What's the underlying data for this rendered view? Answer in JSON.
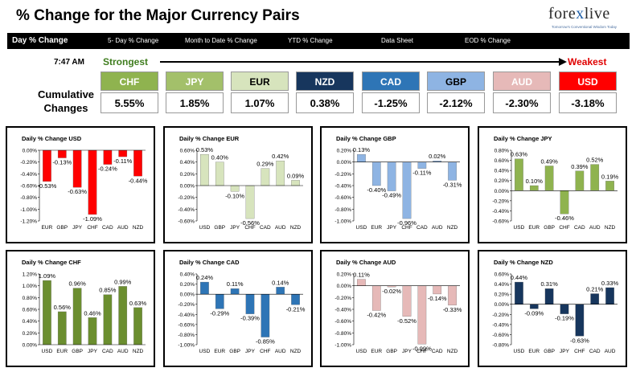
{
  "header": {
    "title": "% Change for the Major Currency Pairs",
    "logo_text_a": "fore",
    "logo_text_x": "x",
    "logo_text_b": "live",
    "logo_tagline": "Tomorrow's Conventional Wisdom Today"
  },
  "nav": [
    "Day % Change",
    "5- Day % Change",
    "Month to Date % Change",
    "YTD % Change",
    "Data Sheet",
    "EOD % Change"
  ],
  "summary": {
    "time": "7:47 AM",
    "strongest": "Strongest",
    "weakest": "Weakest",
    "cumulative_line1": "Cumulative",
    "cumulative_line2": "Changes",
    "currencies": [
      {
        "code": "CHF",
        "value": "5.55%",
        "bg": "#8fb34f",
        "fg": "#ffffff"
      },
      {
        "code": "JPY",
        "value": "1.85%",
        "bg": "#a3c06a",
        "fg": "#ffffff"
      },
      {
        "code": "EUR",
        "value": "1.07%",
        "bg": "#d7e4bd",
        "fg": "#000000"
      },
      {
        "code": "NZD",
        "value": "0.38%",
        "bg": "#17365d",
        "fg": "#ffffff"
      },
      {
        "code": "CAD",
        "value": "-1.25%",
        "bg": "#2e75b6",
        "fg": "#ffffff"
      },
      {
        "code": "GBP",
        "value": "-2.12%",
        "bg": "#8eb4e3",
        "fg": "#000000"
      },
      {
        "code": "AUD",
        "value": "-2.30%",
        "bg": "#e6b9b8",
        "fg": "#ffffff"
      },
      {
        "code": "USD",
        "value": "-3.18%",
        "bg": "#ff0000",
        "fg": "#ffffff"
      }
    ]
  },
  "chart_data": [
    {
      "type": "bar",
      "title": "Daily % Change USD",
      "color": "#ff0000",
      "categories": [
        "EUR",
        "GBP",
        "JPY",
        "CHF",
        "CAD",
        "AUD",
        "NZD"
      ],
      "values": [
        -0.53,
        -0.13,
        -0.63,
        -1.09,
        -0.24,
        -0.11,
        -0.44
      ],
      "labels": [
        "-0.53%",
        "-0.13%",
        "-0.63%",
        "-1.09%",
        "-0.24%",
        "-0.11%",
        "-0.44%"
      ],
      "ylim": [
        -1.2,
        0
      ],
      "yticks": [
        "0.00%",
        "-0.20%",
        "-0.40%",
        "-0.60%",
        "-0.80%",
        "-1.00%",
        "-1.20%"
      ]
    },
    {
      "type": "bar",
      "title": "Daily % Change EUR",
      "color": "#d7e4bd",
      "categories": [
        "USD",
        "GBP",
        "JPY",
        "CHF",
        "CAD",
        "AUD",
        "NZD"
      ],
      "values": [
        0.53,
        0.4,
        -0.1,
        -0.56,
        0.29,
        0.42,
        0.09
      ],
      "labels": [
        "0.53%",
        "0.40%",
        "-0.10%",
        "-0.56%",
        "0.29%",
        "0.42%",
        "0.09%"
      ],
      "ylim": [
        -0.6,
        0.6
      ],
      "yticks": [
        "0.60%",
        "0.40%",
        "0.20%",
        "0.00%",
        "-0.20%",
        "-0.40%",
        "-0.60%"
      ]
    },
    {
      "type": "bar",
      "title": "Daily % Change GBP",
      "color": "#8eb4e3",
      "categories": [
        "USD",
        "EUR",
        "JPY",
        "CHF",
        "CAD",
        "AUD",
        "NZD"
      ],
      "values": [
        0.13,
        -0.4,
        -0.49,
        -0.96,
        -0.11,
        0.02,
        -0.31
      ],
      "labels": [
        "0.13%",
        "-0.40%",
        "-0.49%",
        "-0.96%",
        "-0.11%",
        "0.02%",
        "-0.31%"
      ],
      "ylim": [
        -1.0,
        0.2
      ],
      "yticks": [
        "0.20%",
        "0.00%",
        "-0.20%",
        "-0.40%",
        "-0.60%",
        "-0.80%",
        "-1.00%"
      ]
    },
    {
      "type": "bar",
      "title": "Daily % Change JPY",
      "color": "#8fb34f",
      "categories": [
        "USD",
        "EUR",
        "GBP",
        "CHF",
        "CAD",
        "AUD",
        "NZD"
      ],
      "values": [
        0.63,
        0.1,
        0.49,
        -0.46,
        0.39,
        0.52,
        0.19
      ],
      "labels": [
        "0.63%",
        "0.10%",
        "0.49%",
        "-0.46%",
        "0.39%",
        "0.52%",
        "0.19%"
      ],
      "ylim": [
        -0.6,
        0.8
      ],
      "yticks": [
        "0.80%",
        "0.60%",
        "0.40%",
        "0.20%",
        "0.00%",
        "-0.20%",
        "-0.40%",
        "-0.60%"
      ]
    },
    {
      "type": "bar",
      "title": "Daily % Change CHF",
      "color": "#6b8e2f",
      "categories": [
        "USD",
        "EUR",
        "GBP",
        "JPY",
        "CAD",
        "AUD",
        "NZD"
      ],
      "values": [
        1.09,
        0.56,
        0.96,
        0.46,
        0.85,
        0.99,
        0.63
      ],
      "labels": [
        "1.09%",
        "0.56%",
        "0.96%",
        "0.46%",
        "0.85%",
        "0.99%",
        "0.63%"
      ],
      "ylim": [
        0,
        1.2
      ],
      "yticks": [
        "1.20%",
        "1.00%",
        "0.80%",
        "0.60%",
        "0.40%",
        "0.20%",
        "0.00%"
      ]
    },
    {
      "type": "bar",
      "title": "Daily % Change CAD",
      "color": "#2e75b6",
      "categories": [
        "USD",
        "EUR",
        "GBP",
        "JPY",
        "CHF",
        "AUD",
        "NZD"
      ],
      "values": [
        0.24,
        -0.29,
        0.11,
        -0.39,
        -0.85,
        0.14,
        -0.21
      ],
      "labels": [
        "0.24%",
        "-0.29%",
        "0.11%",
        "-0.39%",
        "-0.85%",
        "0.14%",
        "-0.21%"
      ],
      "ylim": [
        -1.0,
        0.4
      ],
      "yticks": [
        "0.40%",
        "0.20%",
        "0.00%",
        "-0.20%",
        "-0.40%",
        "-0.60%",
        "-0.80%",
        "-1.00%"
      ]
    },
    {
      "type": "bar",
      "title": "Daily % Change AUD",
      "color": "#e6b9b8",
      "categories": [
        "USD",
        "EUR",
        "GBP",
        "JPY",
        "CHF",
        "CAD",
        "NZD"
      ],
      "values": [
        0.11,
        -0.42,
        -0.02,
        -0.52,
        -0.99,
        -0.14,
        -0.33
      ],
      "labels": [
        "0.11%",
        "-0.42%",
        "-0.02%",
        "-0.52%",
        "-0.99%",
        "-0.14%",
        "-0.33%"
      ],
      "ylim": [
        -1.0,
        0.2
      ],
      "yticks": [
        "0.20%",
        "0.00%",
        "-0.20%",
        "-0.40%",
        "-0.60%",
        "-0.80%",
        "-1.00%"
      ]
    },
    {
      "type": "bar",
      "title": "Daily % Change NZD",
      "color": "#17365d",
      "categories": [
        "USD",
        "EUR",
        "GBP",
        "JPY",
        "CHF",
        "CAD",
        "AUD"
      ],
      "values": [
        0.44,
        -0.09,
        0.31,
        -0.19,
        -0.63,
        0.21,
        0.33
      ],
      "labels": [
        "0.44%",
        "-0.09%",
        "0.31%",
        "-0.19%",
        "-0.63%",
        "0.21%",
        "0.33%"
      ],
      "ylim": [
        -0.8,
        0.6
      ],
      "yticks": [
        "0.60%",
        "0.40%",
        "0.20%",
        "0.00%",
        "-0.20%",
        "-0.40%",
        "-0.60%",
        "-0.80%"
      ]
    }
  ]
}
